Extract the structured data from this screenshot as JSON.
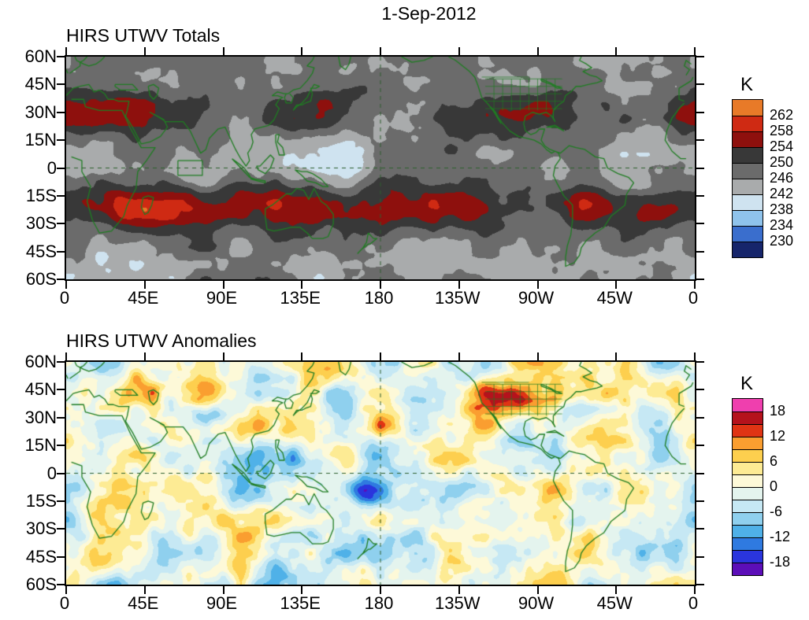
{
  "page_title": "1-Sep-2012",
  "map_overlay_color": "#1f7d22",
  "panels": [
    {
      "title": "HIRS UTWV Totals",
      "y_axis_labels": [
        "60N",
        "45N",
        "30N",
        "15N",
        "0",
        "15S",
        "30S",
        "45S",
        "60S"
      ],
      "x_axis_labels": [
        "0",
        "45E",
        "90E",
        "135E",
        "180",
        "135W",
        "90W",
        "45W",
        "0"
      ],
      "colorbar": {
        "unit": "K",
        "tick_labels": [
          "262",
          "258",
          "254",
          "250",
          "246",
          "242",
          "238",
          "234",
          "230"
        ],
        "colors_top_to_bottom": [
          "#e87a28",
          "#cf2a13",
          "#8e100d",
          "#383838",
          "#6b6b6b",
          "#a9abac",
          "#cfe3f0",
          "#8fc3ec",
          "#3a6ecd",
          "#16256b"
        ]
      }
    },
    {
      "title": "HIRS UTWV Anomalies",
      "y_axis_labels": [
        "60N",
        "45N",
        "30N",
        "15N",
        "0",
        "15S",
        "30S",
        "45S",
        "60S"
      ],
      "x_axis_labels": [
        "0",
        "45E",
        "90E",
        "135E",
        "180",
        "135W",
        "90W",
        "45W",
        "0"
      ],
      "colorbar": {
        "unit": "K",
        "tick_labels": [
          "18",
          "12",
          "6",
          "0",
          "-6",
          "-12",
          "-18"
        ],
        "colors_top_to_bottom": [
          "#ef3fae",
          "#b5121c",
          "#e03414",
          "#fa9e30",
          "#fdcf4e",
          "#fdeb94",
          "#fdf9d8",
          "#e4f4ee",
          "#c6e8f4",
          "#8fd0ee",
          "#4fb1e8",
          "#2f7ae0",
          "#2a35dd",
          "#5c0eb8"
        ]
      }
    }
  ],
  "chart_data": [
    {
      "type": "heatmap",
      "title": "HIRS UTWV Totals",
      "date": "1-Sep-2012",
      "units": "K",
      "projection": "cylindrical, longitude 0E eastward to 0E (180 at center), latitude 60S-60N",
      "x_tick_labels": [
        "0",
        "45E",
        "90E",
        "135E",
        "180",
        "135W",
        "90W",
        "45W",
        "0"
      ],
      "y_tick_labels": [
        "60N",
        "45N",
        "30N",
        "15N",
        "0",
        "15S",
        "30S",
        "45S",
        "60S"
      ],
      "x_range_deg": [
        0,
        360
      ],
      "y_range_deg": [
        -60,
        60
      ],
      "contour_levels": [
        230,
        234,
        238,
        242,
        246,
        250,
        254,
        258,
        262
      ],
      "palette_low_to_high": [
        "#16256b",
        "#3a6ecd",
        "#8fc3ec",
        "#cfe3f0",
        "#a9abac",
        "#6b6b6b",
        "#383838",
        "#8e100d",
        "#cf2a13",
        "#e87a28"
      ],
      "colorbar_tick_labels": [
        "262",
        "258",
        "254",
        "250",
        "246",
        "242",
        "238",
        "234",
        "230"
      ],
      "legend_position": "right",
      "overlays": [
        "green coastlines",
        "US state boundaries",
        "dashed equator line",
        "dashed 180 meridian",
        "small box near 70E on equator"
      ],
      "notable_features": [
        "warm band above 254 K over North Africa and the Middle East near 30N",
        "warm band above 254 K from southern Africa across Australia near 20S",
        "warm maxima over the eastern South Pacific and South America near 15S",
        "cold moist patches below 238 K along the tropics and midlatitude storm tracks",
        "midlatitudes dominated by grays 242-254 K"
      ]
    },
    {
      "type": "heatmap",
      "title": "HIRS UTWV Anomalies",
      "date": "1-Sep-2012",
      "units": "K",
      "projection": "cylindrical, longitude 0E eastward to 0E (180 at center), latitude 60S-60N",
      "x_tick_labels": [
        "0",
        "45E",
        "90E",
        "135E",
        "180",
        "135W",
        "90W",
        "45W",
        "0"
      ],
      "y_tick_labels": [
        "60N",
        "45N",
        "30N",
        "15N",
        "0",
        "15S",
        "30S",
        "45S",
        "60S"
      ],
      "x_range_deg": [
        0,
        360
      ],
      "y_range_deg": [
        -60,
        60
      ],
      "contour_levels": [
        -18,
        -15,
        -12,
        -9,
        -6,
        -3,
        0,
        3,
        6,
        9,
        12,
        15,
        18
      ],
      "palette_low_to_high": [
        "#5c0eb8",
        "#2a35dd",
        "#2f7ae0",
        "#4fb1e8",
        "#8fd0ee",
        "#c6e8f4",
        "#e4f4ee",
        "#fdf9d8",
        "#fdeb94",
        "#fdcf4e",
        "#fa9e30",
        "#e03414",
        "#b5121c",
        "#ef3fae"
      ],
      "colorbar_tick_labels": [
        "18",
        "12",
        "6",
        "0",
        "-6",
        "-12",
        "-18"
      ],
      "legend_position": "right",
      "overlays": [
        "green coastlines",
        "US state boundaries",
        "dashed equator line",
        "dashed 180 meridian"
      ],
      "notable_features": [
        "strong negative anomaly below -18 K near the dateline just south of the equator",
        "strong negative anomaly near 30N 80E (Himalaya region)",
        "positive anomalies over western North America and central Asia",
        "mostly scattered anomalies between -12 and +12 K elsewhere"
      ]
    }
  ]
}
